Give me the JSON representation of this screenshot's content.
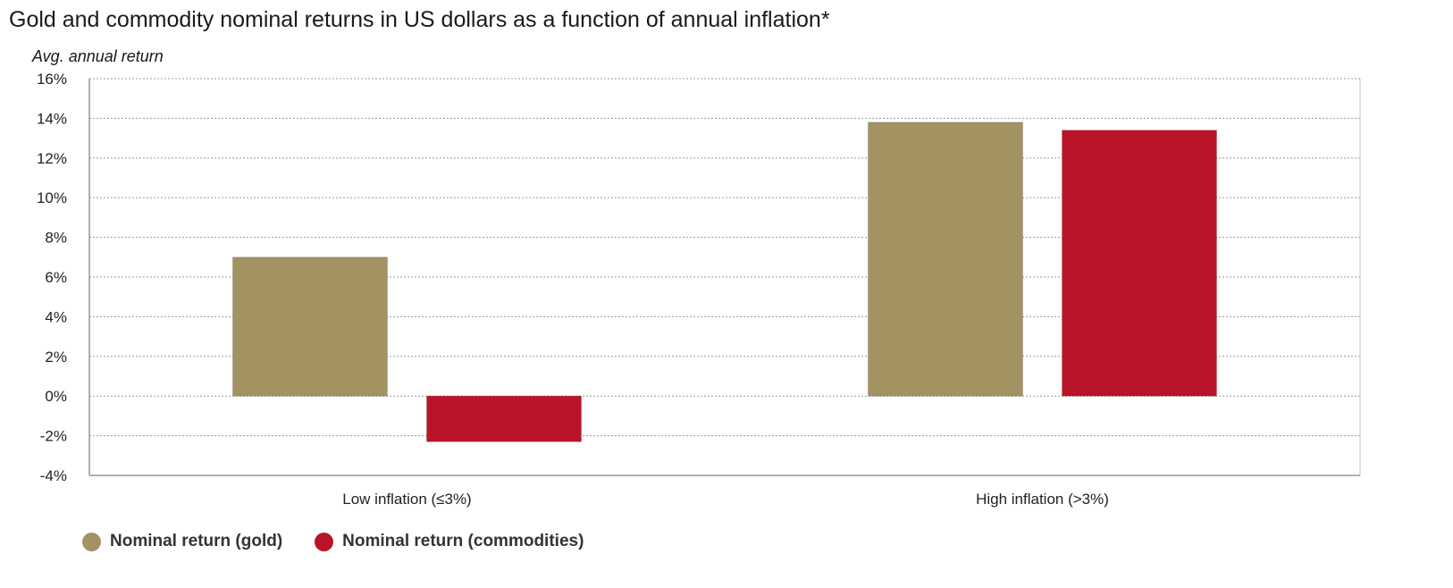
{
  "chart_data": {
    "type": "bar",
    "title": "Gold and commodity nominal returns in US dollars as a function of annual inflation*",
    "ylabel": "Avg. annual return",
    "xlabel": "",
    "categories": [
      "Low inflation (≤3%)",
      "High inflation (>3%)"
    ],
    "series": [
      {
        "name": "Nominal return (gold)",
        "color": "#a39262",
        "values": [
          7.0,
          13.8
        ]
      },
      {
        "name": "Nominal return (commodities)",
        "color": "#ba1428",
        "values": [
          -2.3,
          13.4
        ]
      }
    ],
    "ylim": [
      -4,
      16
    ],
    "yticks": [
      -4,
      -2,
      0,
      2,
      4,
      6,
      8,
      10,
      12,
      14,
      16
    ],
    "ytick_labels": [
      "-4%",
      "-2%",
      "0%",
      "2%",
      "4%",
      "6%",
      "8%",
      "10%",
      "12%",
      "14%",
      "16%"
    ],
    "grid": true,
    "legend_position": "bottom-left"
  }
}
